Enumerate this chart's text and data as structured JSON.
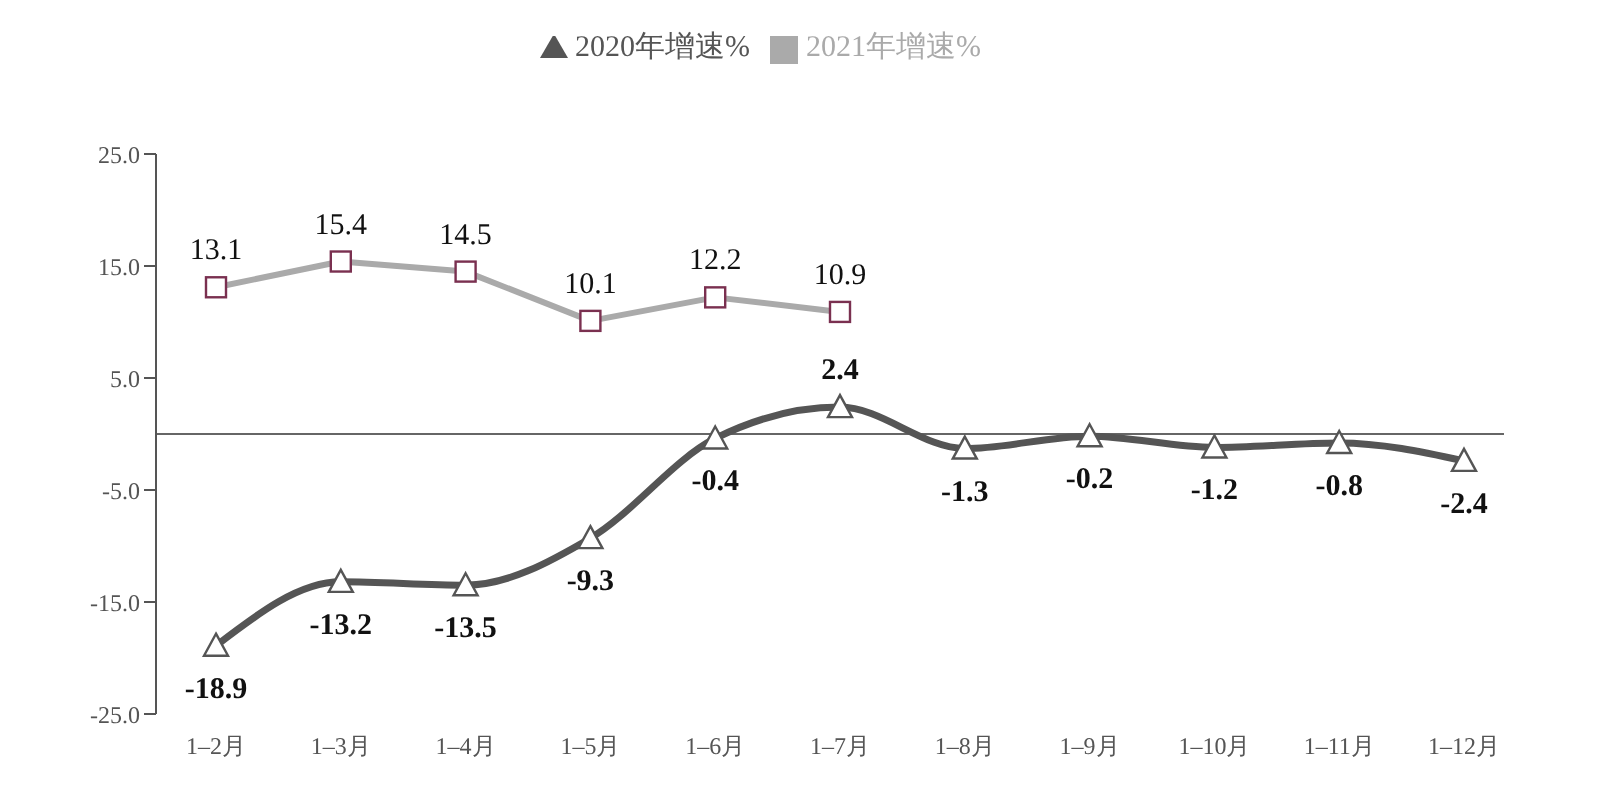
{
  "chart_data": {
    "type": "line",
    "categories": [
      "1–2月",
      "1–3月",
      "1–4月",
      "1–5月",
      "1–6月",
      "1–7月",
      "1–8月",
      "1–9月",
      "1–10月",
      "1–11月",
      "1–12月"
    ],
    "series": [
      {
        "name": "2020年增速%",
        "color": "#555555",
        "marker": "triangle",
        "values": [
          -18.9,
          -13.2,
          -13.5,
          -9.3,
          -0.4,
          2.4,
          -1.3,
          -0.2,
          -1.2,
          -0.8,
          -2.4
        ]
      },
      {
        "name": "2021年增速%",
        "color": "#aaaaaa",
        "marker": "square",
        "values": [
          13.1,
          15.4,
          14.5,
          10.1,
          12.2,
          10.9,
          null,
          null,
          null,
          null,
          null
        ]
      }
    ],
    "ylim": [
      -25,
      25
    ],
    "yticks": [
      {
        "value": 25,
        "label": "25.0"
      },
      {
        "value": 15,
        "label": "15.0"
      },
      {
        "value": 5,
        "label": "5.0"
      },
      {
        "value": -5,
        "label": "-5.0"
      },
      {
        "value": -15,
        "label": "-15.0"
      },
      {
        "value": -25,
        "label": "-25.0"
      }
    ],
    "data_labels": true,
    "legend": "top",
    "grid": false
  }
}
